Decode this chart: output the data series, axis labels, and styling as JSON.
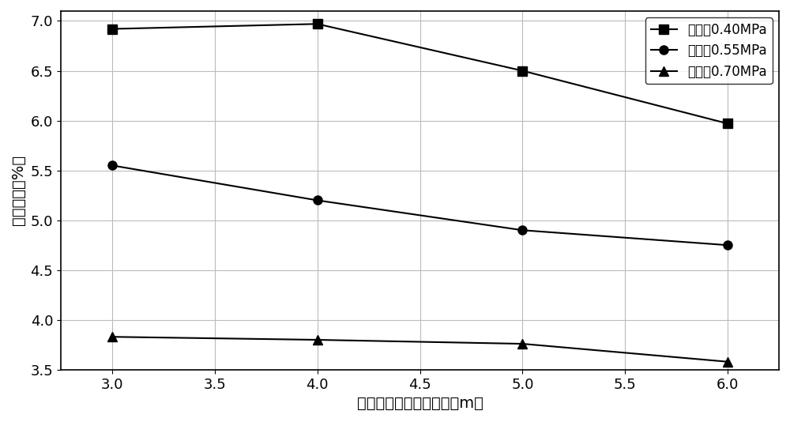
{
  "x": [
    3.0,
    4.0,
    5.0,
    6.0
  ],
  "series": [
    {
      "label": "支护力0.40MPa",
      "y": [
        6.92,
        6.97,
        6.5,
        5.97
      ],
      "marker": "s",
      "color": "#000000"
    },
    {
      "label": "支护力0.55MPa",
      "y": [
        5.55,
        5.2,
        4.9,
        4.75
      ],
      "marker": "o",
      "color": "#000000"
    },
    {
      "label": "支护力0.70MPa",
      "y": [
        3.83,
        3.8,
        3.76,
        3.58
      ],
      "marker": "^",
      "color": "#000000"
    }
  ],
  "xlabel": "围岩深度（锚杆长度）（m）",
  "ylabel": "位移梯度（%）",
  "xlim": [
    2.75,
    6.25
  ],
  "ylim": [
    3.5,
    7.1
  ],
  "xticks": [
    3.0,
    3.5,
    4.0,
    4.5,
    5.0,
    5.5,
    6.0
  ],
  "yticks": [
    3.5,
    4.0,
    4.5,
    5.0,
    5.5,
    6.0,
    6.5,
    7.0
  ],
  "grid": true,
  "legend_loc": "upper right",
  "background_color": "#ffffff",
  "markersize": 8,
  "linewidth": 1.5,
  "xlabel_fontsize": 14,
  "ylabel_fontsize": 14,
  "tick_fontsize": 13,
  "legend_fontsize": 12
}
